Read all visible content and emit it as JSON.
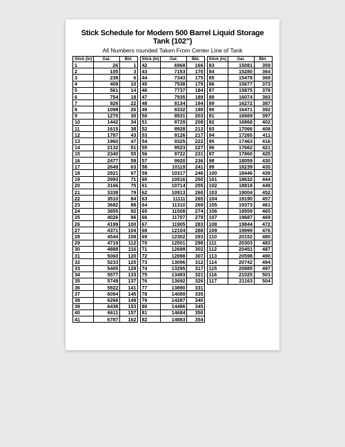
{
  "title": "Stick Schedule for Modern 500 Barrel Liquid Storage Tank (102\")",
  "subtitle": "All Numbers rounded Taken From Center Line of Tank",
  "headers": {
    "stick": "Stick (In)",
    "gal": "Gal.",
    "bbl": "Bbl."
  },
  "style": {
    "page_bg": "#ffffff",
    "backdrop": "#e8e8e8",
    "border_color": "#000000",
    "text_color": "#000000",
    "title_fontsize": 11,
    "subtitle_fontsize": 8.5,
    "cell_fontsize": 7.2
  },
  "columns": [
    [
      [
        1,
        26,
        1
      ],
      [
        2,
        105,
        3
      ],
      [
        3,
        238,
        6
      ],
      [
        4,
        409,
        10
      ],
      [
        5,
        561,
        14
      ],
      [
        6,
        754,
        18
      ],
      [
        7,
        926,
        22
      ],
      [
        8,
        1098,
        26
      ],
      [
        9,
        1270,
        30
      ],
      [
        10,
        1442,
        34
      ],
      [
        11,
        1615,
        38
      ],
      [
        12,
        1787,
        43
      ],
      [
        13,
        1960,
        47
      ],
      [
        14,
        2132,
        51
      ],
      [
        15,
        2340,
        55
      ],
      [
        16,
        2477,
        59
      ],
      [
        17,
        2649,
        63
      ],
      [
        18,
        2821,
        67
      ],
      [
        19,
        2993,
        71
      ],
      [
        20,
        3166,
        75
      ],
      [
        21,
        3338,
        79
      ],
      [
        22,
        3510,
        84
      ],
      [
        23,
        3682,
        88
      ],
      [
        24,
        3855,
        92
      ],
      [
        25,
        4026,
        96
      ],
      [
        26,
        4199,
        100
      ],
      [
        27,
        4371,
        104
      ],
      [
        28,
        4544,
        108
      ],
      [
        29,
        4716,
        112
      ],
      [
        30,
        4888,
        116
      ],
      [
        31,
        5060,
        120
      ],
      [
        32,
        5233,
        125
      ],
      [
        33,
        5405,
        129
      ],
      [
        34,
        5577,
        133
      ],
      [
        35,
        5749,
        137
      ],
      [
        36,
        5922,
        141
      ],
      [
        37,
        6094,
        145
      ],
      [
        38,
        6266,
        149
      ],
      [
        39,
        6438,
        153
      ],
      [
        40,
        6611,
        157
      ],
      [
        41,
        6787,
        162
      ]
    ],
    [
      [
        42,
        6968,
        166
      ],
      [
        43,
        7153,
        170
      ],
      [
        44,
        7343,
        175
      ],
      [
        45,
        7538,
        179
      ],
      [
        46,
        7737,
        184
      ],
      [
        47,
        7935,
        189
      ],
      [
        48,
        8134,
        194
      ],
      [
        49,
        8332,
        198
      ],
      [
        50,
        8531,
        203
      ],
      [
        51,
        8729,
        208
      ],
      [
        52,
        8928,
        213
      ],
      [
        53,
        9126,
        217
      ],
      [
        54,
        9325,
        222
      ],
      [
        55,
        9523,
        227
      ],
      [
        56,
        9722,
        231
      ],
      [
        57,
        9920,
        236
      ],
      [
        58,
        10119,
        241
      ],
      [
        59,
        10317,
        246
      ],
      [
        60,
        10516,
        250
      ],
      [
        61,
        10714,
        255
      ],
      [
        62,
        10913,
        260
      ],
      [
        63,
        11111,
        265
      ],
      [
        64,
        11310,
        269
      ],
      [
        65,
        11508,
        274
      ],
      [
        66,
        11707,
        279
      ],
      [
        67,
        11905,
        283
      ],
      [
        68,
        12104,
        288
      ],
      [
        69,
        12302,
        293
      ],
      [
        70,
        12501,
        298
      ],
      [
        71,
        12699,
        302
      ],
      [
        72,
        12898,
        307
      ],
      [
        73,
        13096,
        312
      ],
      [
        74,
        13295,
        317
      ],
      [
        75,
        13493,
        321
      ],
      [
        76,
        13692,
        326
      ],
      [
        77,
        13890,
        331
      ],
      [
        78,
        14089,
        335
      ],
      [
        79,
        14287,
        340
      ],
      [
        80,
        14486,
        345
      ],
      [
        81,
        14684,
        350
      ],
      [
        82,
        14883,
        354
      ]
    ],
    [
      [
        83,
        15081,
        359
      ],
      [
        84,
        15280,
        364
      ],
      [
        85,
        15478,
        369
      ],
      [
        86,
        15677,
        373
      ],
      [
        87,
        15875,
        378
      ],
      [
        88,
        16074,
        383
      ],
      [
        89,
        16272,
        387
      ],
      [
        90,
        16471,
        392
      ],
      [
        91,
        16669,
        397
      ],
      [
        92,
        16868,
        402
      ],
      [
        93,
        17066,
        408
      ],
      [
        94,
        17265,
        411
      ],
      [
        95,
        17463,
        416
      ],
      [
        96,
        17662,
        421
      ],
      [
        97,
        17860,
        425
      ],
      [
        98,
        18059,
        430
      ],
      [
        99,
        18239,
        435
      ],
      [
        100,
        18446,
        439
      ],
      [
        101,
        18632,
        444
      ],
      [
        102,
        18818,
        448
      ],
      [
        103,
        19004,
        452
      ],
      [
        104,
        19190,
        457
      ],
      [
        105,
        19373,
        461
      ],
      [
        106,
        19559,
        465
      ],
      [
        107,
        19687,
        469
      ],
      [
        108,
        19844,
        472
      ],
      [
        109,
        19999,
        476
      ],
      [
        110,
        20152,
        480
      ],
      [
        111,
        20303,
        483
      ],
      [
        112,
        20451,
        487
      ],
      [
        113,
        20598,
        490
      ],
      [
        114,
        20742,
        494
      ],
      [
        115,
        20885,
        497
      ],
      [
        116,
        21025,
        501
      ],
      [
        117,
        21163,
        504
      ]
    ]
  ]
}
